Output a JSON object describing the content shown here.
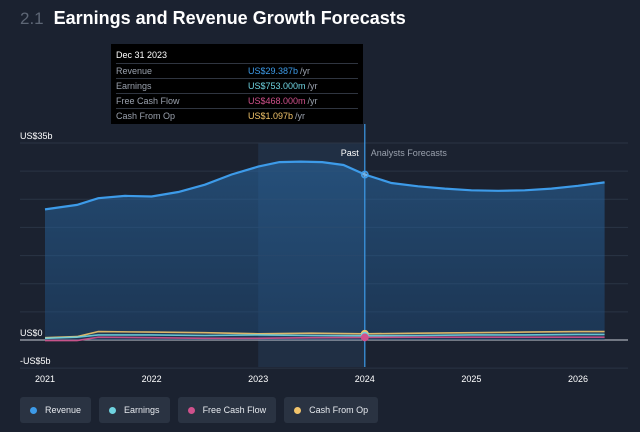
{
  "header": {
    "section_number": "2.1",
    "title": "Earnings and Revenue Growth Forecasts"
  },
  "tooltip": {
    "date": "Dec 31 2023",
    "rows": [
      {
        "label": "Revenue",
        "value": "US$29.387b",
        "unit": "/yr"
      },
      {
        "label": "Earnings",
        "value": "US$753.000m",
        "unit": "/yr"
      },
      {
        "label": "Free Cash Flow",
        "value": "US$468.000m",
        "unit": "/yr"
      },
      {
        "label": "Cash From Op",
        "value": "US$1.097b",
        "unit": "/yr"
      }
    ]
  },
  "legend": [
    {
      "label": "Revenue",
      "color": "#3d9be9"
    },
    {
      "label": "Earnings",
      "color": "#6fd3e0"
    },
    {
      "label": "Free Cash Flow",
      "color": "#d0518c"
    },
    {
      "label": "Cash From Op",
      "color": "#f2c46b"
    }
  ],
  "colors": {
    "background": "#1b2230",
    "revenue": "#3d9be9",
    "earnings": "#6fd3e0",
    "free_cash_flow": "#d0518c",
    "cash_from_op": "#f2c46b",
    "cursor": "#3d9be9"
  },
  "chart_data": {
    "type": "area",
    "x_ticks": [
      "2021",
      "2022",
      "2023",
      "2024",
      "2025",
      "2026"
    ],
    "y_ticks": [
      "US$35b",
      "US$0",
      "-US$5b"
    ],
    "ylim": [
      -5,
      35
    ],
    "xlim": [
      2021.0,
      2026.25
    ],
    "past_label": "Past",
    "forecast_label": "Analysts Forecasts",
    "cursor_x": 2024.0,
    "series": [
      {
        "name": "Revenue",
        "color": "#3d9be9",
        "x": [
          2021.0,
          2021.3,
          2021.5,
          2021.75,
          2022.0,
          2022.25,
          2022.5,
          2022.75,
          2023.0,
          2023.2,
          2023.4,
          2023.6,
          2023.8,
          2024.0,
          2024.25,
          2024.5,
          2024.75,
          2025.0,
          2025.25,
          2025.5,
          2025.75,
          2026.0,
          2026.25
        ],
        "values": [
          23.2,
          24.0,
          25.2,
          25.6,
          25.5,
          26.3,
          27.6,
          29.4,
          30.8,
          31.6,
          31.7,
          31.6,
          31.1,
          29.4,
          27.9,
          27.3,
          26.9,
          26.6,
          26.5,
          26.6,
          26.9,
          27.4,
          28.0
        ]
      },
      {
        "name": "Earnings",
        "color": "#6fd3e0",
        "x": [
          2021.0,
          2021.3,
          2021.5,
          2022.0,
          2022.5,
          2023.0,
          2023.5,
          2024.0,
          2024.5,
          2025.0,
          2025.5,
          2026.0,
          2026.25
        ],
        "values": [
          0.3,
          0.5,
          0.9,
          0.9,
          0.8,
          0.9,
          0.8,
          0.75,
          0.8,
          0.9,
          0.9,
          1.0,
          1.0
        ]
      },
      {
        "name": "Free Cash Flow",
        "color": "#d0518c",
        "x": [
          2021.0,
          2021.3,
          2021.5,
          2022.0,
          2022.5,
          2023.0,
          2023.5,
          2024.0,
          2024.5,
          2025.0,
          2025.5,
          2026.0,
          2026.25
        ],
        "values": [
          -0.1,
          -0.1,
          0.5,
          0.4,
          0.3,
          0.3,
          0.4,
          0.47,
          0.5,
          0.5,
          0.5,
          0.5,
          0.5
        ]
      },
      {
        "name": "Cash From Op",
        "color": "#f2c46b",
        "x": [
          2021.0,
          2021.3,
          2021.5,
          2022.0,
          2022.5,
          2023.0,
          2023.5,
          2024.0,
          2024.5,
          2025.0,
          2025.5,
          2026.0,
          2026.25
        ],
        "values": [
          0.4,
          0.6,
          1.5,
          1.4,
          1.3,
          1.1,
          1.2,
          1.1,
          1.2,
          1.3,
          1.4,
          1.5,
          1.5
        ]
      }
    ]
  }
}
